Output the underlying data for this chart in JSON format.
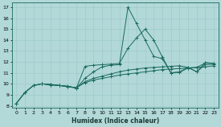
{
  "xlabel": "Humidex (Indice chaleur)",
  "bg_color": "#b2d8d8",
  "line_color": "#1a6b5e",
  "xlim": [
    -0.5,
    23.5
  ],
  "ylim": [
    7.8,
    17.4
  ],
  "xticks": [
    0,
    1,
    2,
    3,
    4,
    5,
    6,
    7,
    8,
    9,
    10,
    11,
    12,
    13,
    14,
    15,
    16,
    17,
    18,
    19,
    20,
    21,
    22,
    23
  ],
  "yticks": [
    8,
    9,
    10,
    11,
    12,
    13,
    14,
    15,
    16,
    17
  ],
  "line1_x": [
    0,
    1,
    2,
    3,
    4,
    5,
    6,
    7,
    8,
    9,
    10,
    11,
    12,
    13,
    14,
    15,
    16,
    17,
    18,
    19,
    20,
    21,
    22,
    23
  ],
  "line1_y": [
    8.2,
    9.2,
    9.85,
    10.0,
    9.95,
    9.85,
    9.75,
    9.65,
    10.1,
    10.35,
    10.5,
    10.65,
    10.8,
    10.9,
    11.0,
    11.1,
    11.2,
    11.3,
    11.35,
    11.4,
    11.45,
    11.5,
    11.55,
    11.65
  ],
  "line2_x": [
    0,
    1,
    2,
    3,
    4,
    5,
    6,
    7,
    8,
    9,
    10,
    11,
    12,
    13,
    14,
    15,
    16,
    17,
    18,
    19,
    20,
    21,
    22,
    23
  ],
  "line2_y": [
    8.2,
    9.2,
    9.85,
    10.0,
    9.95,
    9.85,
    9.75,
    9.65,
    10.2,
    10.5,
    10.7,
    10.9,
    11.1,
    11.25,
    11.35,
    11.45,
    11.5,
    11.55,
    11.6,
    11.65,
    11.5,
    11.1,
    11.75,
    11.8
  ],
  "line3_x": [
    0,
    1,
    2,
    3,
    4,
    5,
    6,
    7,
    8,
    9,
    10,
    11,
    12,
    13,
    14,
    15,
    16,
    17,
    18,
    19,
    20,
    21,
    22,
    23
  ],
  "line3_y": [
    8.2,
    9.2,
    9.85,
    10.0,
    9.9,
    9.85,
    9.75,
    9.6,
    11.6,
    11.7,
    11.75,
    11.8,
    11.85,
    13.25,
    14.2,
    15.0,
    14.0,
    12.45,
    11.0,
    11.05,
    11.45,
    11.5,
    11.9,
    11.85
  ],
  "line4_x": [
    3,
    4,
    5,
    6,
    7,
    8,
    9,
    10,
    11,
    12,
    13,
    14,
    15,
    16,
    17,
    18,
    19,
    20,
    21,
    22,
    23
  ],
  "line4_y": [
    10.0,
    9.9,
    9.85,
    9.8,
    9.6,
    10.5,
    11.1,
    11.55,
    11.7,
    11.75,
    17.0,
    15.5,
    14.0,
    12.5,
    12.3,
    11.0,
    11.1,
    11.5,
    11.1,
    11.95,
    11.85
  ]
}
